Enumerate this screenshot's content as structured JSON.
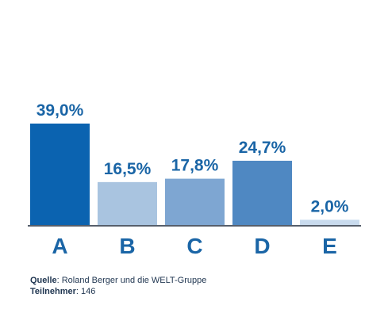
{
  "chart_data": {
    "type": "bar",
    "categories": [
      "A",
      "B",
      "C",
      "D",
      "E"
    ],
    "values": [
      39.0,
      16.5,
      17.8,
      24.7,
      2.0
    ],
    "value_labels": [
      "39,0%",
      "16,5%",
      "17,8%",
      "24,7%",
      "2,0%"
    ],
    "colors": [
      "#0b63b0",
      "#a9c4e0",
      "#7ea6d2",
      "#4f88c2",
      "#c9dbee"
    ],
    "ylim": [
      0,
      45
    ],
    "grid": false,
    "baseline_color": "#1f2a3a",
    "text_color": "#1a65a6"
  },
  "footer": {
    "source_label": "Quelle",
    "source_text": ": Roland Berger und die WELT-Gruppe",
    "participants_label": "Teilnehmer",
    "participants_text": ": 146"
  }
}
